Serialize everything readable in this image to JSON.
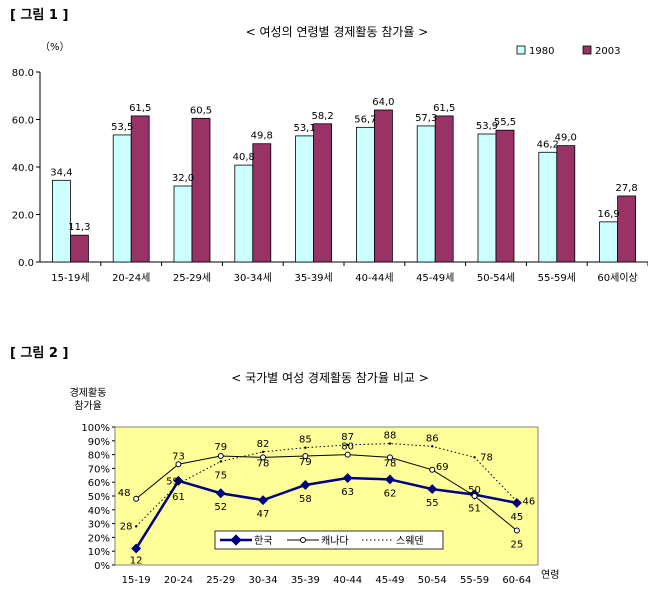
{
  "chart_data": [
    {
      "type": "bar",
      "figure_label": "[ 그림 1 ]",
      "title": "< 여성의 연령별 경제활동 참가율 >",
      "unit_label": "（%）",
      "xlabel": "",
      "ylabel": "",
      "ylim": [
        0,
        80
      ],
      "yticks": [
        "0.0",
        "20.0",
        "40.0",
        "60.0",
        "80.0"
      ],
      "grid": false,
      "legend_position": "top-right",
      "categories": [
        "15-19세",
        "20-24세",
        "25-29세",
        "30-34세",
        "35-39세",
        "40-44세",
        "45-49세",
        "50-54세",
        "55-59세",
        "60세이상"
      ],
      "series": [
        {
          "name": "1980",
          "color": "#ccffff",
          "values": [
            34.4,
            53.5,
            32.0,
            40.8,
            53.1,
            56.7,
            57.3,
            53.9,
            46.2,
            16.9
          ],
          "labels": [
            "34,4",
            "53,5",
            "32,0",
            "40,8",
            "53,1",
            "56,7",
            "57,3",
            "53,9",
            "46,2",
            "16,9"
          ]
        },
        {
          "name": "2003",
          "color": "#993366",
          "values": [
            11.3,
            61.5,
            60.5,
            49.8,
            58.2,
            64.0,
            61.5,
            55.5,
            49.0,
            27.8
          ],
          "labels": [
            "11,3",
            "61,5",
            "60,5",
            "49,8",
            "58,2",
            "64,0",
            "61,5",
            "55,5",
            "49,0",
            "27,8"
          ]
        }
      ]
    },
    {
      "type": "line",
      "figure_label": "[ 그림 2 ]",
      "title": "< 국가별 여성 경제활동 참가율 비교 >",
      "ylabel": "경제활동\n참가율",
      "xlabel": "연령",
      "ylim": [
        0,
        100
      ],
      "yticks": [
        "0%",
        "10%",
        "20%",
        "30%",
        "40%",
        "50%",
        "60%",
        "70%",
        "80%",
        "90%",
        "100%"
      ],
      "plot_background": "#ffff99",
      "grid": false,
      "legend_position": "bottom-center",
      "categories": [
        "15-19",
        "20-24",
        "25-29",
        "30-34",
        "35-39",
        "40-44",
        "45-49",
        "50-54",
        "55-59",
        "60-64"
      ],
      "series": [
        {
          "name": "한국",
          "style": "solid-bold-diamond",
          "color": "#000080",
          "values": [
            12,
            61,
            52,
            47,
            58,
            63,
            62,
            55,
            51,
            45
          ]
        },
        {
          "name": "캐나다",
          "style": "solid-thin-circle",
          "color": "#000000",
          "values": [
            48,
            73,
            79,
            78,
            79,
            80,
            78,
            69,
            50,
            25
          ]
        },
        {
          "name": "스웨덴",
          "style": "dotted",
          "color": "#000000",
          "values": [
            28,
            59,
            75,
            82,
            85,
            87,
            88,
            86,
            78,
            46
          ]
        }
      ]
    }
  ]
}
